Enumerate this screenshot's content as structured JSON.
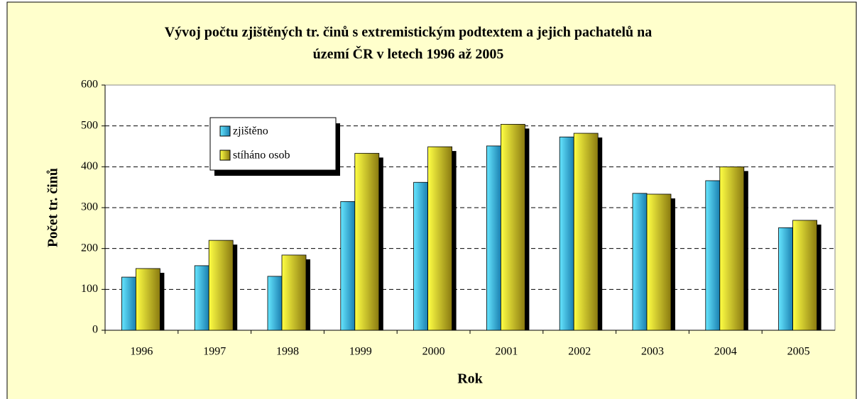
{
  "chart_data": {
    "type": "bar",
    "title": [
      "Vývoj počtu zjištěných tr. činů s extremistickým podtextem a jejich pachatelů na",
      "území ČR v letech 1996 až 2005"
    ],
    "x_label": "Rok",
    "y_label": "Počet  tr. činů",
    "categories": [
      "1996",
      "1997",
      "1998",
      "1999",
      "2000",
      "2001",
      "2002",
      "2003",
      "2004",
      "2005"
    ],
    "series": [
      {
        "name": "zjištěno",
        "color": "#33ccee",
        "values": [
          130,
          158,
          132,
          315,
          362,
          451,
          473,
          335,
          366,
          251
        ]
      },
      {
        "name": "stíháno osob",
        "color": "#ffff00",
        "values": [
          151,
          220,
          184,
          433,
          449,
          504,
          482,
          333,
          400,
          269
        ]
      }
    ],
    "ylim": [
      0,
      600
    ],
    "yticks": [
      0,
      100,
      200,
      300,
      400,
      500,
      600
    ],
    "grid": true,
    "legend": "upper left"
  }
}
